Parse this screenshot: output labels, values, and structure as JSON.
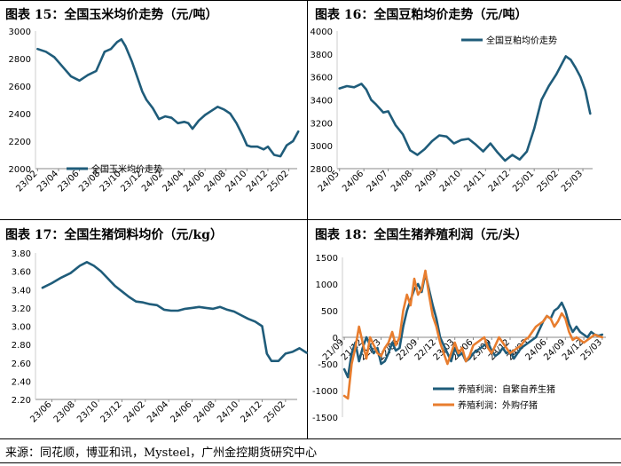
{
  "source": "来源：同花顺，博亚和讯，Mysteel，广州金控期货研究中心",
  "colors": {
    "blue": "#1F5C7A",
    "orange": "#E87D2E",
    "axis": "#888888"
  },
  "chart_data": [
    {
      "type": "line",
      "title": "图表 15：全国玉米均价走势（元/吨）",
      "legend_position": "bottom-left",
      "ylim": [
        2000,
        3000
      ],
      "yticks": [
        2000,
        2200,
        2400,
        2600,
        2800,
        3000
      ],
      "categories": [
        "23/02",
        "23/04",
        "23/06",
        "23/08",
        "23/10",
        "23/12",
        "24/02",
        "24/04",
        "24/06",
        "24/08",
        "24/10",
        "24/12",
        "25/02"
      ],
      "series": [
        {
          "name": "全国玉米均价走势",
          "color": "#1F5C7A",
          "x": [
            0,
            0.4,
            0.8,
            1.2,
            1.6,
            2.0,
            2.4,
            2.8,
            3.0,
            3.2,
            3.5,
            3.8,
            4.0,
            4.2,
            4.5,
            4.8,
            5.0,
            5.2,
            5.5,
            5.8,
            6.1,
            6.4,
            6.7,
            7.0,
            7.2,
            7.4,
            7.7,
            8.0,
            8.3,
            8.6,
            8.9,
            9.2,
            9.5,
            9.8,
            10.0,
            10.2,
            10.5,
            10.8,
            11.0,
            11.3,
            11.6,
            11.9,
            12.2,
            12.45
          ],
          "y": [
            2870,
            2850,
            2810,
            2740,
            2670,
            2640,
            2680,
            2710,
            2780,
            2850,
            2870,
            2920,
            2940,
            2890,
            2780,
            2650,
            2560,
            2500,
            2440,
            2360,
            2380,
            2370,
            2330,
            2340,
            2330,
            2290,
            2350,
            2390,
            2420,
            2450,
            2430,
            2400,
            2330,
            2240,
            2170,
            2160,
            2160,
            2140,
            2160,
            2100,
            2090,
            2170,
            2200,
            2270
          ]
        }
      ]
    },
    {
      "type": "line",
      "title": "图表 16：全国豆粕均价走势（元/吨）",
      "legend_position": "top-right",
      "ylim": [
        2800,
        4000
      ],
      "yticks": [
        2800,
        3000,
        3200,
        3400,
        3600,
        3800,
        4000
      ],
      "categories": [
        "24/05",
        "24/06",
        "24/07",
        "24/08",
        "24/09",
        "24/10",
        "24/11",
        "24/12",
        "25/01",
        "25/02",
        "25/03"
      ],
      "series": [
        {
          "name": "全国豆粕均价走势",
          "color": "#1F5C7A",
          "x": [
            0,
            0.3,
            0.6,
            0.9,
            1.1,
            1.3,
            1.5,
            1.8,
            2.0,
            2.3,
            2.6,
            2.9,
            3.2,
            3.5,
            3.8,
            4.1,
            4.4,
            4.7,
            5.0,
            5.3,
            5.6,
            5.9,
            6.2,
            6.5,
            6.8,
            7.1,
            7.4,
            7.7,
            8.0,
            8.3,
            8.6,
            8.9,
            9.1,
            9.3,
            9.5,
            9.7,
            9.9,
            10.1,
            10.3
          ],
          "y": [
            3500,
            3520,
            3510,
            3540,
            3490,
            3400,
            3360,
            3290,
            3300,
            3180,
            3100,
            2960,
            2920,
            2970,
            3040,
            3090,
            3080,
            3020,
            3050,
            3060,
            3010,
            2950,
            3020,
            2940,
            2870,
            2920,
            2880,
            2950,
            3150,
            3400,
            3520,
            3620,
            3700,
            3780,
            3750,
            3680,
            3600,
            3480,
            3280
          ]
        }
      ]
    },
    {
      "type": "line",
      "title": "图表 17：全国生猪饲料均价（元/kg）",
      "ylim": [
        2.2,
        3.8
      ],
      "yticks": [
        2.2,
        2.4,
        2.6,
        2.8,
        3.0,
        3.2,
        3.4,
        3.6,
        3.8
      ],
      "ytick_labels": [
        "2.20",
        "2.40",
        "2.60",
        "2.80",
        "3.00",
        "3.20",
        "3.40",
        "3.60",
        "3.80"
      ],
      "categories": [
        "23/06",
        "23/08",
        "23/10",
        "23/12",
        "24/02",
        "24/04",
        "24/06",
        "24/08",
        "24/10",
        "24/12",
        "25/02"
      ],
      "series": [
        {
          "name": "全国生猪饲料均价",
          "color": "#1F5C7A",
          "x": [
            -0.4,
            0,
            0.4,
            0.8,
            1.2,
            1.5,
            1.8,
            2.1,
            2.4,
            2.7,
            3.0,
            3.3,
            3.6,
            3.9,
            4.2,
            4.5,
            4.8,
            5.1,
            5.4,
            5.7,
            6.0,
            6.3,
            6.6,
            6.9,
            7.2,
            7.5,
            7.8,
            8.1,
            8.4,
            8.7,
            9.0,
            9.2,
            9.4,
            9.7,
            10.0,
            10.3,
            10.6,
            10.9
          ],
          "y": [
            3.42,
            3.47,
            3.53,
            3.58,
            3.66,
            3.7,
            3.66,
            3.6,
            3.52,
            3.44,
            3.38,
            3.32,
            3.27,
            3.26,
            3.24,
            3.23,
            3.18,
            3.17,
            3.17,
            3.19,
            3.2,
            3.21,
            3.2,
            3.19,
            3.21,
            3.18,
            3.16,
            3.12,
            3.08,
            3.05,
            3.0,
            2.7,
            2.62,
            2.62,
            2.7,
            2.72,
            2.76,
            2.71
          ]
        }
      ]
    },
    {
      "type": "line",
      "title": "图表 18：全国生猪养殖利润（元/头）",
      "legend_position": "bottom-right",
      "ylim": [
        -1500,
        1500
      ],
      "yticks": [
        -1500,
        -1000,
        -500,
        0,
        500,
        1000,
        1500
      ],
      "categories": [
        "21/09",
        "21/12",
        "22/03",
        "22/06",
        "22/09",
        "22/12",
        "23/03",
        "23/06",
        "23/09",
        "23/12",
        "24/03",
        "24/06",
        "24/09",
        "24/12",
        "25/03"
      ],
      "series": [
        {
          "name": "养殖利润：自繁自养生猪",
          "color": "#1F5C7A",
          "x": [
            0,
            0.2,
            0.4,
            0.6,
            0.8,
            1.0,
            1.2,
            1.4,
            1.6,
            1.8,
            2.0,
            2.2,
            2.4,
            2.6,
            2.8,
            3.0,
            3.2,
            3.4,
            3.6,
            3.8,
            4.0,
            4.2,
            4.4,
            4.6,
            4.8,
            5.0,
            5.2,
            5.4,
            5.6,
            5.8,
            6.0,
            6.2,
            6.4,
            6.6,
            6.8,
            7.0,
            7.2,
            7.4,
            7.6,
            7.8,
            8.0,
            8.2,
            8.4,
            8.6,
            8.8,
            9.0,
            9.2,
            9.4,
            9.6,
            9.8,
            10.0,
            10.2,
            10.4,
            10.6,
            10.8,
            11.0,
            11.2,
            11.4,
            11.6,
            11.8,
            12.0,
            12.2,
            12.4,
            12.6,
            12.8,
            13.0,
            13.2,
            13.4,
            13.6,
            13.8,
            14.0
          ],
          "y": [
            -600,
            -750,
            -300,
            -100,
            -450,
            -200,
            0,
            -150,
            -300,
            -200,
            -500,
            -450,
            -300,
            -100,
            -250,
            -200,
            200,
            500,
            700,
            900,
            1000,
            850,
            1200,
            900,
            600,
            350,
            0,
            -150,
            -300,
            -450,
            -200,
            -350,
            -300,
            -450,
            -400,
            -300,
            -250,
            -200,
            -150,
            -100,
            -250,
            -350,
            -300,
            -200,
            -300,
            -250,
            -400,
            -300,
            -200,
            -150,
            -100,
            -50,
            0,
            150,
            300,
            400,
            350,
            500,
            550,
            650,
            500,
            250,
            100,
            200,
            100,
            50,
            0,
            100,
            50,
            30,
            50
          ]
        },
        {
          "name": "养殖利润：外购仔猪",
          "color": "#E87D2E",
          "x": [
            0,
            0.2,
            0.4,
            0.6,
            0.8,
            1.0,
            1.2,
            1.4,
            1.6,
            1.8,
            2.0,
            2.2,
            2.4,
            2.6,
            2.8,
            3.0,
            3.2,
            3.4,
            3.6,
            3.8,
            4.0,
            4.2,
            4.4,
            4.6,
            4.8,
            5.0,
            5.2,
            5.4,
            5.6,
            5.8,
            6.0,
            6.2,
            6.4,
            6.6,
            6.8,
            7.0,
            7.2,
            7.4,
            7.6,
            7.8,
            8.0,
            8.2,
            8.4,
            8.6,
            8.8,
            9.0,
            9.2,
            9.4,
            9.6,
            9.8,
            10.0,
            10.2,
            10.4,
            10.6,
            10.8,
            11.0,
            11.2,
            11.4,
            11.6,
            11.8,
            12.0,
            12.2,
            12.4,
            12.6,
            12.8,
            13.0,
            13.2,
            13.4,
            13.6,
            13.8,
            14.0
          ],
          "y": [
            -1100,
            -1150,
            -500,
            -200,
            200,
            -100,
            -400,
            0,
            -150,
            -300,
            -350,
            -200,
            -100,
            100,
            -150,
            0,
            500,
            800,
            600,
            1100,
            800,
            900,
            1250,
            800,
            400,
            200,
            -100,
            -300,
            -500,
            -300,
            -100,
            -300,
            -200,
            -450,
            -350,
            -150,
            -100,
            -50,
            0,
            -200,
            -300,
            -150,
            0,
            -100,
            -200,
            -300,
            -250,
            -200,
            -150,
            -50,
            0,
            100,
            200,
            250,
            300,
            400,
            350,
            200,
            300,
            450,
            350,
            100,
            -50,
            0,
            -50,
            -100,
            -50,
            0,
            50,
            20,
            0
          ]
        }
      ]
    }
  ]
}
